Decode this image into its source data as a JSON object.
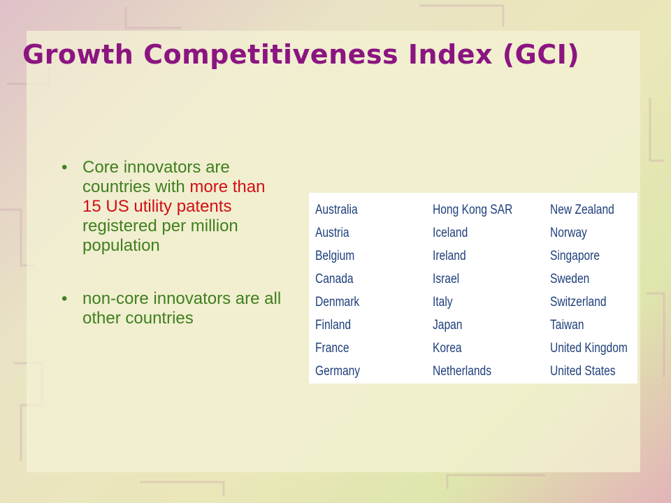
{
  "slide": {
    "title": "Growth Competitiveness Index (GCI)",
    "bullets": [
      {
        "marker": "•",
        "part1": "Core innovators are countries with ",
        "highlight": "more than 15 US utility patents",
        "part2": " registered per million population"
      },
      {
        "marker": "•",
        "part1": "non-core innovators are all other countries"
      }
    ],
    "countries": {
      "col1": [
        "Australia",
        "Austria",
        "Belgium",
        "Canada",
        "Denmark",
        "Finland",
        "France",
        "Germany"
      ],
      "col2": [
        "Hong Kong SAR",
        "Iceland",
        "Ireland",
        "Israel",
        "Italy",
        "Japan",
        "Korea",
        "Netherlands"
      ],
      "col3": [
        "New Zealand",
        "Norway",
        "Singapore",
        "Sweden",
        "Switzerland",
        "Taiwan",
        "United Kingdom",
        "United States"
      ]
    },
    "colors": {
      "title": "#8b1580",
      "text": "#3f7f1e",
      "highlight": "#d40d14",
      "table_text": "#1f3f7b"
    }
  }
}
